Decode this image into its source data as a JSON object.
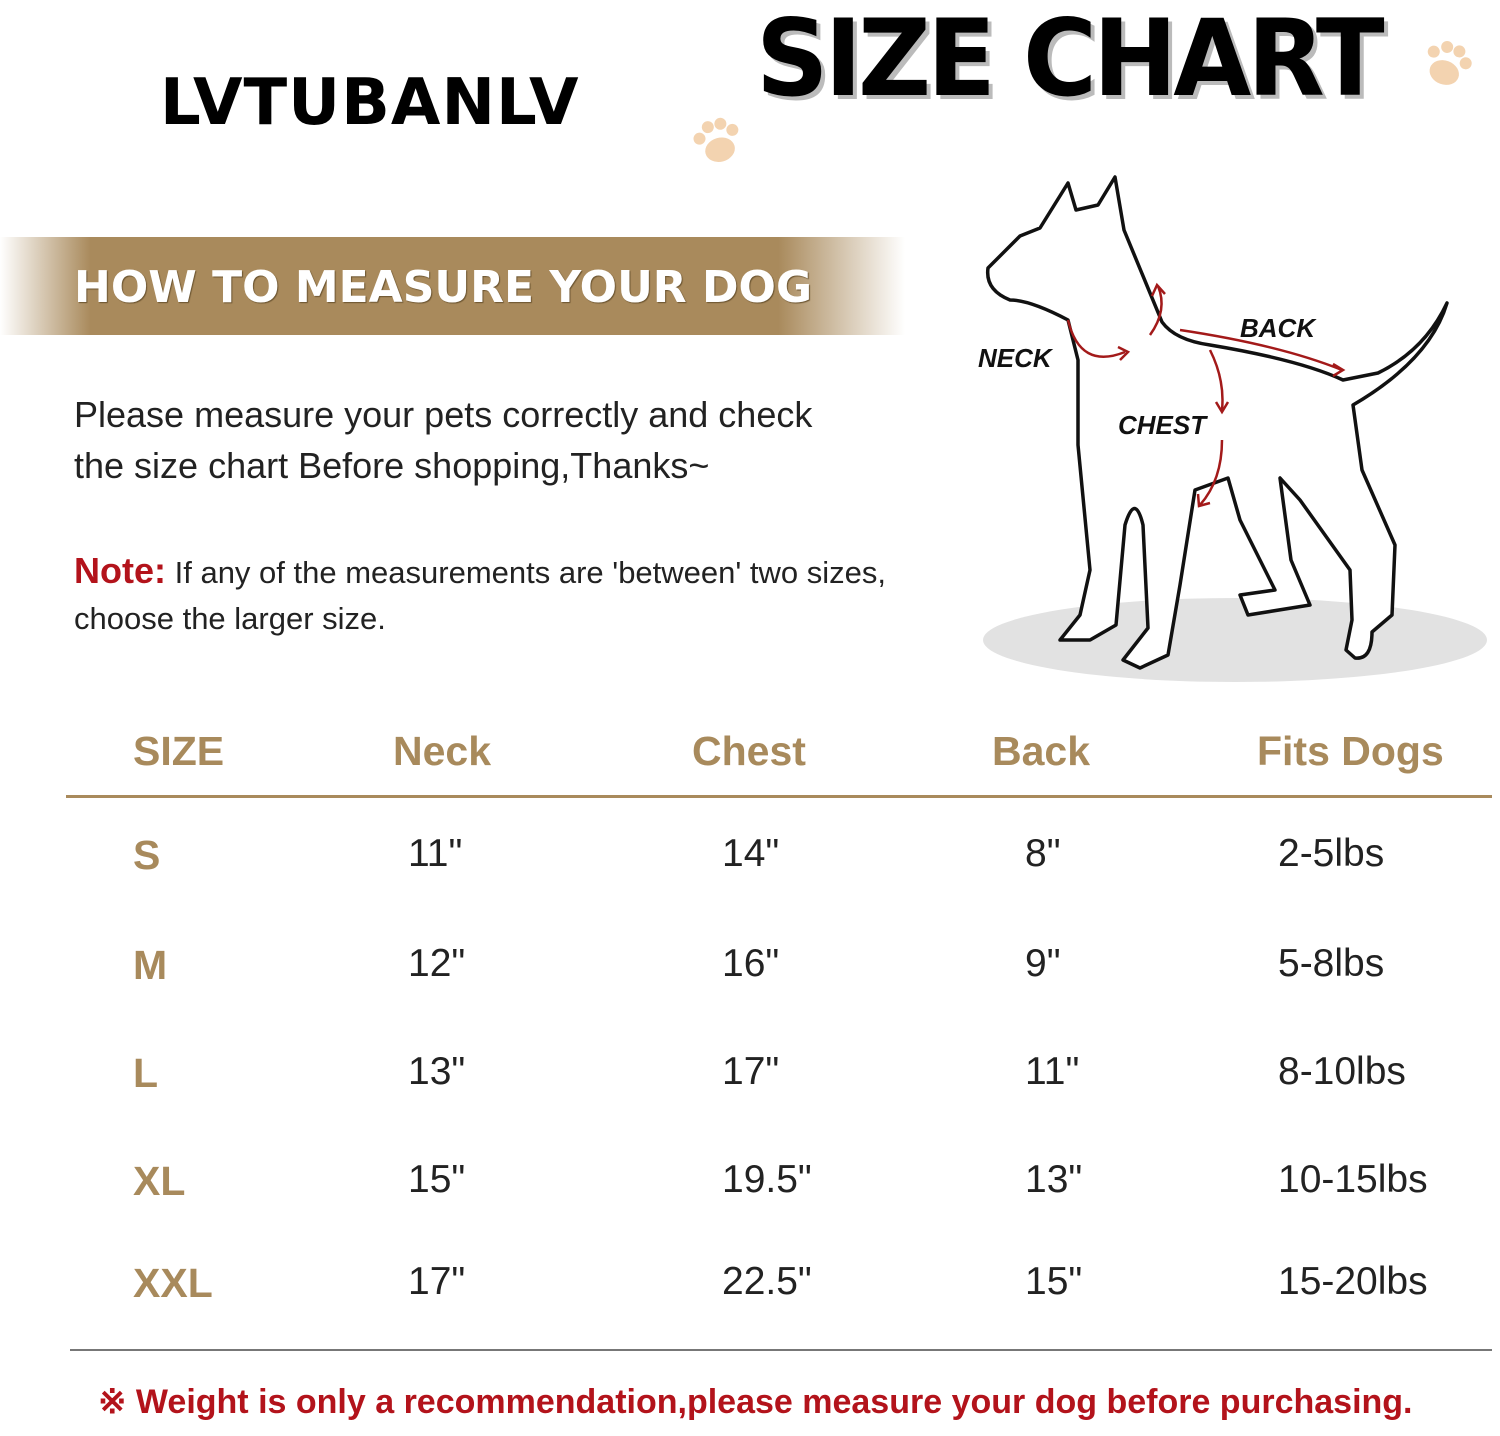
{
  "brand": "LVTUBANLV",
  "title": "SIZE CHART",
  "banner": "HOW TO MEASURE YOUR DOG",
  "intro_lines": [
    "Please measure your pets correctly and check",
    "the size chart Before shopping,Thanks~"
  ],
  "note": {
    "label": "Note:",
    "text": " If any of the measurements are 'between' two sizes, choose the larger size."
  },
  "diagram_labels": {
    "neck": "NECK",
    "back": "BACK",
    "chest": "CHEST"
  },
  "table": {
    "headers": [
      "SIZE",
      "Neck",
      "Chest",
      "Back",
      "Fits Dogs"
    ],
    "rows": [
      [
        "S",
        "11\"",
        "14\"",
        "8\"",
        "2-5lbs"
      ],
      [
        "M",
        "12\"",
        "16\"",
        "9\"",
        "5-8lbs"
      ],
      [
        "L",
        "13\"",
        "17\"",
        "11\"",
        "8-10lbs"
      ],
      [
        "XL",
        "15\"",
        "19.5\"",
        "13\"",
        "10-15lbs"
      ],
      [
        "XXL",
        "17\"",
        "22.5\"",
        "15\"",
        "15-20lbs"
      ]
    ]
  },
  "footer": "※ Weight is only a recommendation,please measure your dog before purchasing.",
  "colors": {
    "accent": "#a98a5c",
    "warning": "#b3131b",
    "arrow": "#a31a1a",
    "paw": "#f3d3b0"
  },
  "icons": [
    "paw-print-icon",
    "dog-outline-icon"
  ]
}
